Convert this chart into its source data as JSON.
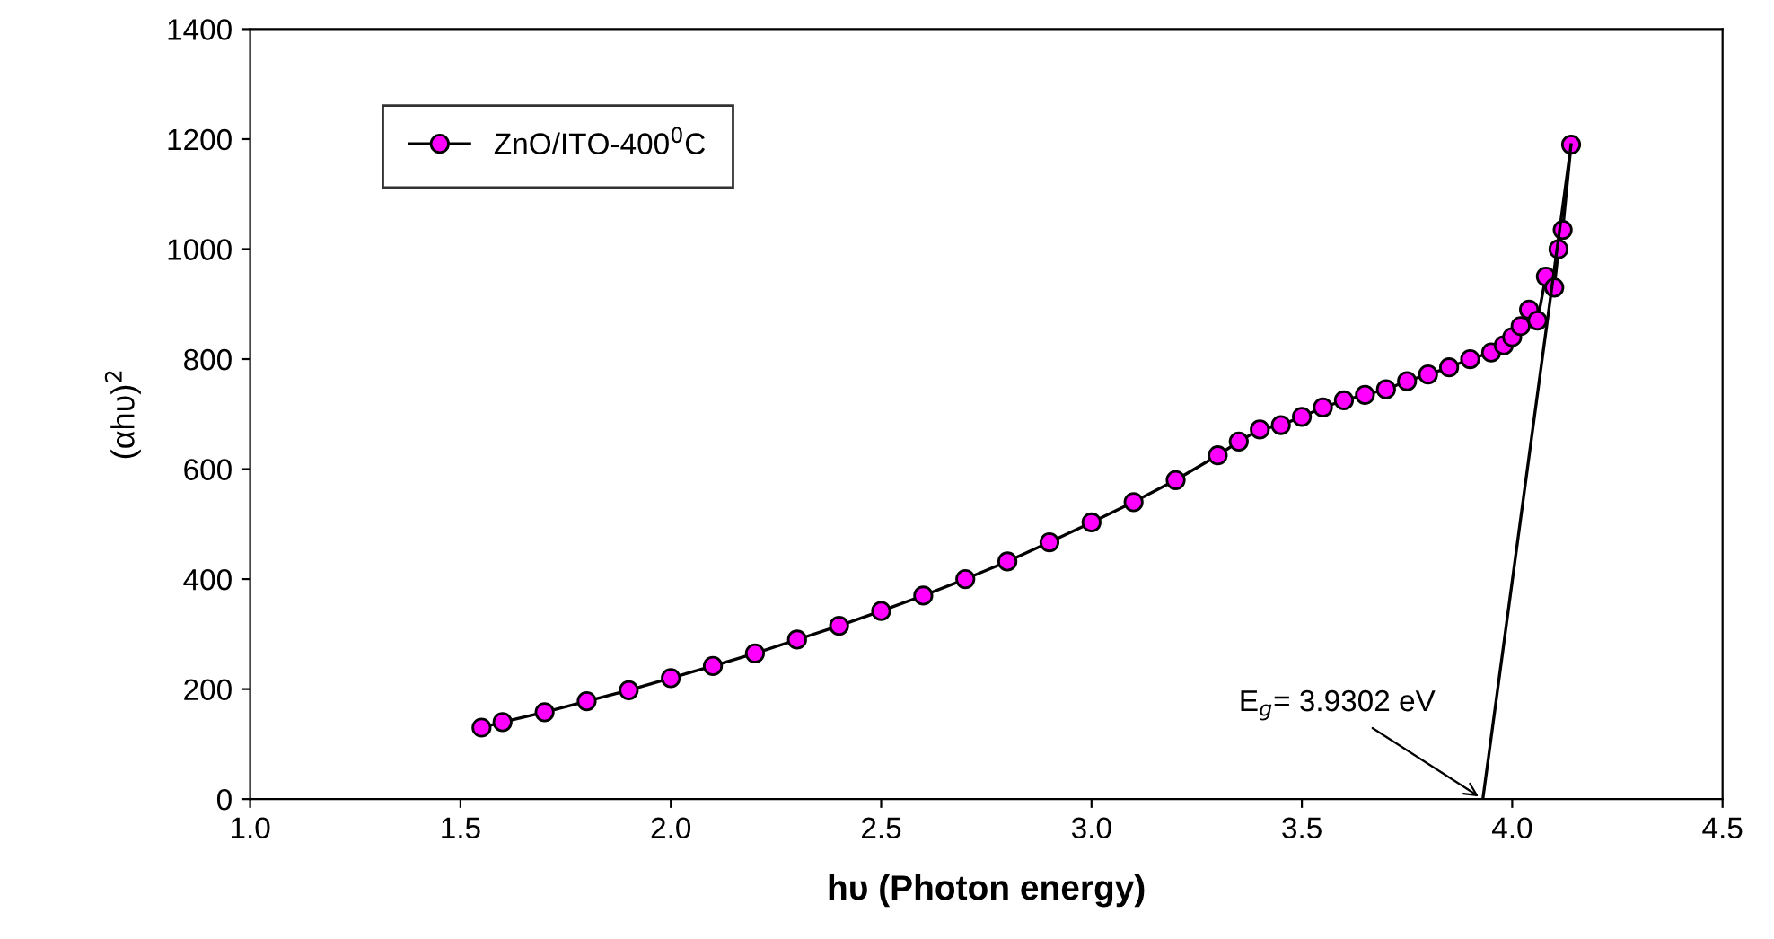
{
  "chart_data": {
    "type": "line",
    "xlabel": "hυ (Photon energy)",
    "ylabel": "(αhυ)$^{2}$",
    "xlim": [
      1.0,
      4.5
    ],
    "xticks": [
      {
        "value": 1.0,
        "label": "1.0"
      },
      {
        "value": 1.5,
        "label": "1.5"
      },
      {
        "value": 2.0,
        "label": "2.0"
      },
      {
        "value": 2.5,
        "label": "2.5"
      },
      {
        "value": 3.0,
        "label": "3.0"
      },
      {
        "value": 3.5,
        "label": "3.5"
      },
      {
        "value": 4.0,
        "label": "4.0"
      },
      {
        "value": 4.5,
        "label": "4.5"
      }
    ],
    "ylim": [
      0,
      1400
    ],
    "yticks": [
      0,
      200,
      400,
      600,
      800,
      1000,
      1200,
      1400
    ],
    "grid": false,
    "legend": "top left",
    "series": [
      {
        "name": "ZnO/ITO-400$^{0}$C",
        "color": "#ff00ff",
        "marker": "circle",
        "x": [
          1.55,
          1.6,
          1.7,
          1.8,
          1.9,
          2.0,
          2.1,
          2.2,
          2.3,
          2.4,
          2.5,
          2.6,
          2.7,
          2.8,
          2.9,
          3.0,
          3.1,
          3.2,
          3.3,
          3.35,
          3.4,
          3.45,
          3.5,
          3.55,
          3.6,
          3.65,
          3.7,
          3.75,
          3.8,
          3.85,
          3.9,
          3.95,
          3.98,
          4.0,
          4.02,
          4.04,
          4.06,
          4.08,
          4.1,
          4.11,
          4.12,
          4.14
        ],
        "values": [
          130,
          140,
          158,
          178,
          198,
          220,
          242,
          265,
          290,
          315,
          342,
          370,
          400,
          432,
          467,
          503,
          540,
          580,
          625,
          650,
          672,
          680,
          695,
          712,
          725,
          735,
          745,
          760,
          772,
          785,
          800,
          812,
          825,
          840,
          860,
          890,
          870,
          950,
          930,
          1000,
          1035,
          1190
        ]
      },
      {
        "color": "#000000",
        "marker": "none",
        "x": [
          3.9302,
          4.14
        ],
        "values": [
          0,
          1190
        ]
      }
    ],
    "annotations": [
      {
        "text": "E$_{g}$= 3.9302 eV",
        "x": 3.9302,
        "y": 0
      }
    ]
  }
}
